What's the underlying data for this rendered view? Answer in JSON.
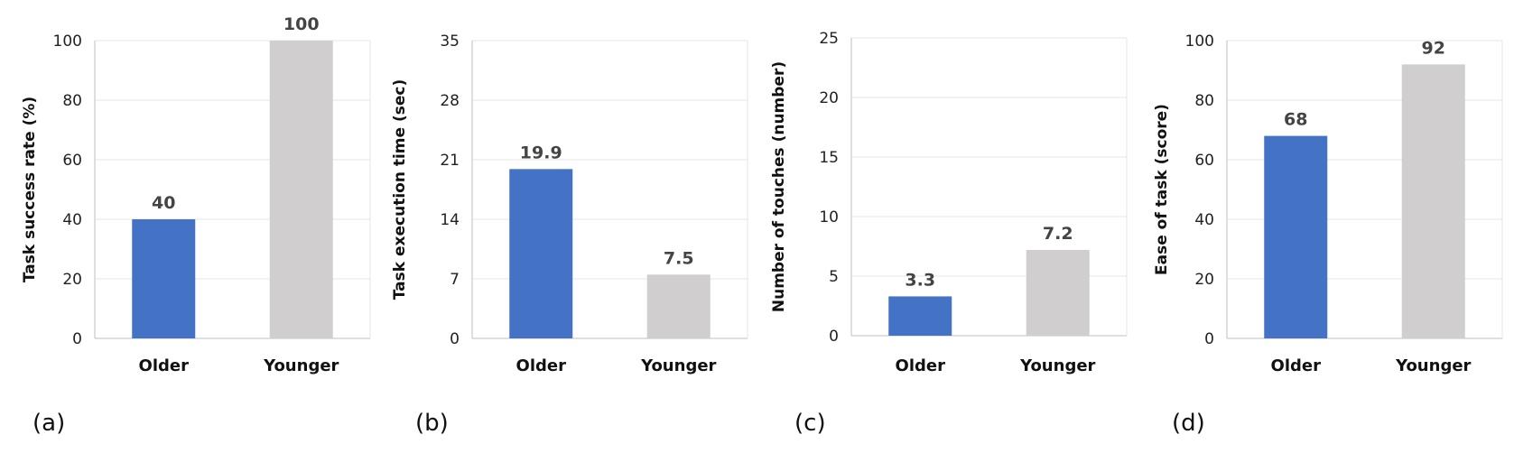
{
  "colors": {
    "older": "#4472C4",
    "younger": "#D0CECE",
    "grid": "#E6E6E6",
    "axis": "#BFBFBF"
  },
  "chart_data": [
    {
      "type": "bar",
      "panel_label": "(a)",
      "categories": [
        "Older",
        "Younger"
      ],
      "values": [
        40,
        100
      ],
      "value_labels": [
        "40",
        "100"
      ],
      "ylabel": "Task success rate (%)",
      "ylim": [
        0,
        100
      ],
      "yticks": [
        0,
        20,
        40,
        60,
        80,
        100
      ],
      "grid": true
    },
    {
      "type": "bar",
      "panel_label": "(b)",
      "categories": [
        "Older",
        "Younger"
      ],
      "values": [
        19.9,
        7.5
      ],
      "value_labels": [
        "19.9",
        "7.5"
      ],
      "ylabel": "Task execution time (sec)",
      "ylim": [
        0,
        35
      ],
      "yticks": [
        0,
        7,
        14,
        21,
        28,
        35
      ],
      "grid": true
    },
    {
      "type": "bar",
      "panel_label": "(c)",
      "categories": [
        "Older",
        "Younger"
      ],
      "values": [
        3.3,
        7.2
      ],
      "value_labels": [
        "3.3",
        "7.2"
      ],
      "ylabel": "Number of touches (number)",
      "ylim": [
        0,
        25
      ],
      "yticks": [
        0,
        5,
        10,
        15,
        20,
        25
      ],
      "grid": true
    },
    {
      "type": "bar",
      "panel_label": "(d)",
      "categories": [
        "Older",
        "Younger"
      ],
      "values": [
        68,
        92
      ],
      "value_labels": [
        "68",
        "92"
      ],
      "ylabel": "Ease of task (score)",
      "ylim": [
        0,
        100
      ],
      "yticks": [
        0,
        20,
        40,
        60,
        80,
        100
      ],
      "grid": true
    }
  ]
}
